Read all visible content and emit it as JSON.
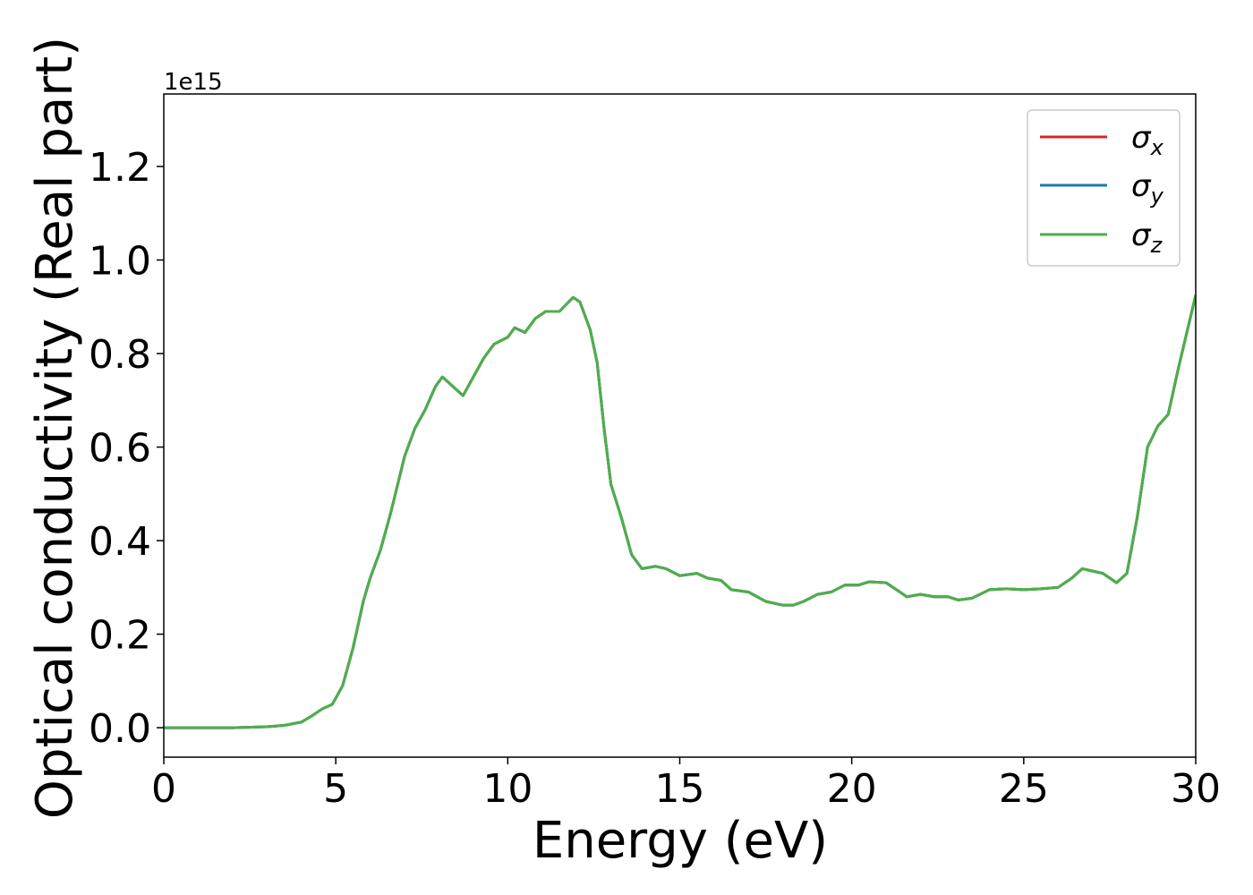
{
  "chart_data": {
    "type": "line",
    "xlabel": "Energy (eV)",
    "ylabel": "Optical conductivity (Real part)",
    "y_offset_label": "1e15",
    "xlim": [
      0,
      30
    ],
    "ylim": [
      -0.063,
      1.355
    ],
    "xticks": [
      0,
      5,
      10,
      15,
      20,
      25,
      30
    ],
    "yticks": [
      {
        "value": 0,
        "label": "0.0"
      },
      0.2,
      0.4,
      0.6,
      0.8,
      {
        "value": 1,
        "label": "1.0"
      },
      1.2
    ],
    "legend": "upper right",
    "x": [
      0,
      1,
      2,
      3,
      3.5,
      4,
      4.3,
      4.6,
      4.9,
      5.2,
      5.5,
      5.8,
      6.0,
      6.3,
      6.6,
      7.0,
      7.3,
      7.6,
      7.9,
      8.1,
      8.4,
      8.7,
      9.0,
      9.3,
      9.6,
      10.0,
      10.2,
      10.5,
      10.8,
      11.1,
      11.5,
      11.9,
      12.1,
      12.4,
      12.6,
      12.8,
      13.0,
      13.3,
      13.6,
      13.9,
      14.3,
      14.6,
      15.0,
      15.5,
      15.8,
      16.2,
      16.5,
      17.0,
      17.5,
      18.0,
      18.3,
      18.6,
      19.0,
      19.4,
      19.8,
      20.2,
      20.5,
      21.0,
      21.3,
      21.6,
      22.0,
      22.4,
      22.8,
      23.1,
      23.5,
      24.0,
      24.5,
      25.0,
      25.5,
      26.0,
      26.4,
      26.7,
      27.0,
      27.3,
      27.7,
      28.0,
      28.3,
      28.6,
      28.9,
      29.2,
      29.5,
      30
    ],
    "series": [
      {
        "name": "σx",
        "color": "#d62728",
        "values": [
          0,
          0,
          0,
          0.002,
          0.005,
          0.012,
          0.025,
          0.04,
          0.05,
          0.09,
          0.17,
          0.27,
          0.32,
          0.38,
          0.46,
          0.58,
          0.64,
          0.68,
          0.73,
          0.75,
          0.73,
          0.71,
          0.75,
          0.79,
          0.82,
          0.835,
          0.855,
          0.845,
          0.875,
          0.89,
          0.89,
          0.92,
          0.91,
          0.85,
          0.78,
          0.64,
          0.52,
          0.45,
          0.37,
          0.34,
          0.345,
          0.34,
          0.325,
          0.33,
          0.32,
          0.315,
          0.295,
          0.29,
          0.27,
          0.262,
          0.262,
          0.27,
          0.285,
          0.29,
          0.305,
          0.305,
          0.312,
          0.31,
          0.295,
          0.28,
          0.285,
          0.28,
          0.28,
          0.273,
          0.277,
          0.295,
          0.297,
          0.295,
          0.297,
          0.3,
          0.32,
          0.34,
          0.335,
          0.33,
          0.31,
          0.33,
          0.45,
          0.6,
          0.645,
          0.67,
          0.77,
          0.925
        ]
      },
      {
        "name": "σy",
        "color": "#1f77b4",
        "values": [
          0,
          0,
          0,
          0.002,
          0.005,
          0.012,
          0.025,
          0.04,
          0.05,
          0.09,
          0.17,
          0.27,
          0.32,
          0.38,
          0.46,
          0.58,
          0.64,
          0.68,
          0.73,
          0.75,
          0.73,
          0.71,
          0.75,
          0.79,
          0.82,
          0.835,
          0.855,
          0.845,
          0.875,
          0.89,
          0.89,
          0.92,
          0.91,
          0.85,
          0.78,
          0.64,
          0.52,
          0.45,
          0.37,
          0.34,
          0.345,
          0.34,
          0.325,
          0.33,
          0.32,
          0.315,
          0.295,
          0.29,
          0.27,
          0.262,
          0.262,
          0.27,
          0.285,
          0.29,
          0.305,
          0.305,
          0.312,
          0.31,
          0.295,
          0.28,
          0.285,
          0.28,
          0.28,
          0.273,
          0.277,
          0.295,
          0.297,
          0.295,
          0.297,
          0.3,
          0.32,
          0.34,
          0.335,
          0.33,
          0.31,
          0.33,
          0.45,
          0.6,
          0.645,
          0.67,
          0.77,
          0.925
        ]
      },
      {
        "name": "σz",
        "color": "#4daf4a",
        "values": [
          0,
          0,
          0,
          0.002,
          0.005,
          0.012,
          0.025,
          0.04,
          0.05,
          0.09,
          0.17,
          0.27,
          0.32,
          0.38,
          0.46,
          0.58,
          0.64,
          0.68,
          0.73,
          0.75,
          0.73,
          0.71,
          0.75,
          0.79,
          0.82,
          0.835,
          0.855,
          0.845,
          0.875,
          0.89,
          0.89,
          0.92,
          0.91,
          0.85,
          0.78,
          0.64,
          0.52,
          0.45,
          0.37,
          0.34,
          0.345,
          0.34,
          0.325,
          0.33,
          0.32,
          0.315,
          0.295,
          0.29,
          0.27,
          0.262,
          0.262,
          0.27,
          0.285,
          0.29,
          0.305,
          0.305,
          0.312,
          0.31,
          0.295,
          0.28,
          0.285,
          0.28,
          0.28,
          0.273,
          0.277,
          0.295,
          0.297,
          0.295,
          0.297,
          0.3,
          0.32,
          0.34,
          0.335,
          0.33,
          0.31,
          0.33,
          0.45,
          0.6,
          0.645,
          0.67,
          0.77,
          0.925
        ]
      }
    ]
  }
}
